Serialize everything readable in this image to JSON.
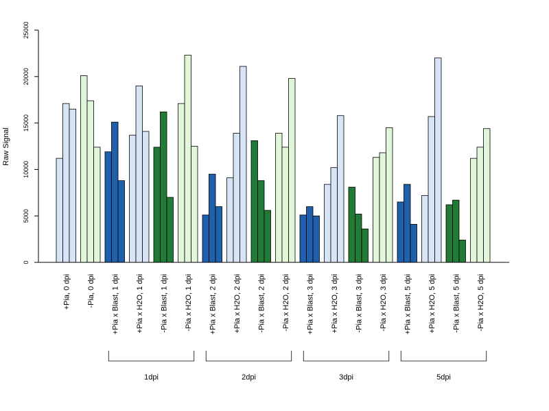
{
  "chart_data": {
    "type": "bar",
    "ylabel": "Raw Signal",
    "ylim": [
      0,
      25000
    ],
    "yticks": [
      0,
      5000,
      10000,
      15000,
      20000,
      25000
    ],
    "grid": false,
    "colors": {
      "light_blue": "#d6e4f5",
      "light_green": "#e1f5d9",
      "dark_blue": "#1f5fab",
      "dark_green": "#217a36"
    },
    "categories": [
      {
        "label": "+Pia, 0 dpi",
        "color": "light_blue",
        "values": [
          11200,
          17100,
          16500
        ]
      },
      {
        "label": "-Pia, 0 dpi",
        "color": "light_green",
        "values": [
          20100,
          17400,
          12400
        ]
      },
      {
        "label": "+Pia x Blast, 1 dpi",
        "color": "dark_blue",
        "values": [
          11900,
          15100,
          8800
        ]
      },
      {
        "label": "+Pia x H2O, 1 dpi",
        "color": "light_blue",
        "values": [
          13700,
          19000,
          14100
        ]
      },
      {
        "label": "-Pia x Blast, 1 dpi",
        "color": "dark_green",
        "values": [
          12400,
          16200,
          7000
        ]
      },
      {
        "label": "-Pia x H2O, 1 dpi",
        "color": "light_green",
        "values": [
          17100,
          22300,
          12500
        ]
      },
      {
        "label": "+Pia x Blast, 2 dpi",
        "color": "dark_blue",
        "values": [
          5100,
          9500,
          6000
        ]
      },
      {
        "label": "+Pia x H2O, 2 dpi",
        "color": "light_blue",
        "values": [
          9100,
          13900,
          21100
        ]
      },
      {
        "label": "-Pia x Blast, 2 dpi",
        "color": "dark_green",
        "values": [
          13100,
          8800,
          5600
        ]
      },
      {
        "label": "-Pia x H2O, 2 dpi",
        "color": "light_green",
        "values": [
          13900,
          12400,
          19800
        ]
      },
      {
        "label": "+Pia x Blast, 3 dpi",
        "color": "dark_blue",
        "values": [
          5100,
          6000,
          5000
        ]
      },
      {
        "label": "+Pia x H2O, 3 dpi",
        "color": "light_blue",
        "values": [
          8400,
          10200,
          15800
        ]
      },
      {
        "label": "-Pia x Blast, 3 dpi",
        "color": "dark_green",
        "values": [
          8100,
          5200,
          3600
        ]
      },
      {
        "label": "-Pia x H2O, 3 dpi",
        "color": "light_green",
        "values": [
          11300,
          11800,
          14500
        ]
      },
      {
        "label": "+Pia x Blast, 5 dpi",
        "color": "dark_blue",
        "values": [
          6500,
          8400,
          4100
        ]
      },
      {
        "label": "+Pia x H2O, 5 dpi",
        "color": "light_blue",
        "values": [
          7200,
          15700,
          22000
        ]
      },
      {
        "label": "-Pia x Blast, 5 dpi",
        "color": "dark_green",
        "values": [
          6200,
          6700,
          2400
        ]
      },
      {
        "label": "-Pia x H2O, 5 dpi",
        "color": "light_green",
        "values": [
          11200,
          12400,
          14400
        ]
      }
    ],
    "groups": [
      {
        "label": "1dpi",
        "from": 2,
        "to": 5
      },
      {
        "label": "2dpi",
        "from": 6,
        "to": 9
      },
      {
        "label": "3dpi",
        "from": 10,
        "to": 13
      },
      {
        "label": "5dpi",
        "from": 14,
        "to": 17
      }
    ]
  }
}
